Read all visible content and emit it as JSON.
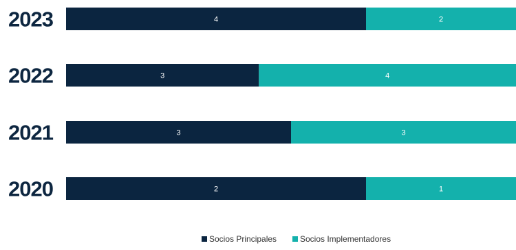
{
  "chart_data": {
    "type": "bar",
    "orientation": "horizontal",
    "stacked": true,
    "normalized": true,
    "categories": [
      "2023",
      "2022",
      "2021",
      "2020"
    ],
    "series": [
      {
        "name": "Socios Principales",
        "values": [
          4,
          3,
          3,
          2
        ],
        "color": "#0b2540"
      },
      {
        "name": "Socios Implementadores",
        "values": [
          2,
          4,
          3,
          1
        ],
        "color": "#14b1ac"
      }
    ],
    "legend_position": "bottom-center",
    "grid": false
  }
}
